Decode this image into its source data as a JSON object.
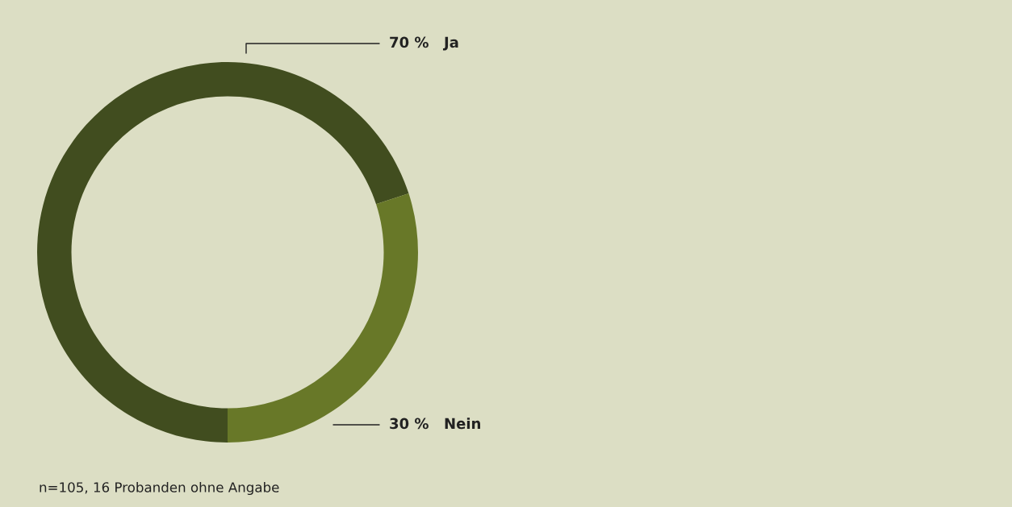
{
  "chart_data": {
    "type": "donut",
    "categories": [
      "Ja",
      "Nein"
    ],
    "values": [
      70,
      30
    ],
    "colors": [
      "#414d1f",
      "#687828"
    ],
    "value_labels": [
      "70 %",
      "30 %"
    ],
    "annotations": [
      "n=105, 16 Probanden ohne Angabe"
    ]
  }
}
